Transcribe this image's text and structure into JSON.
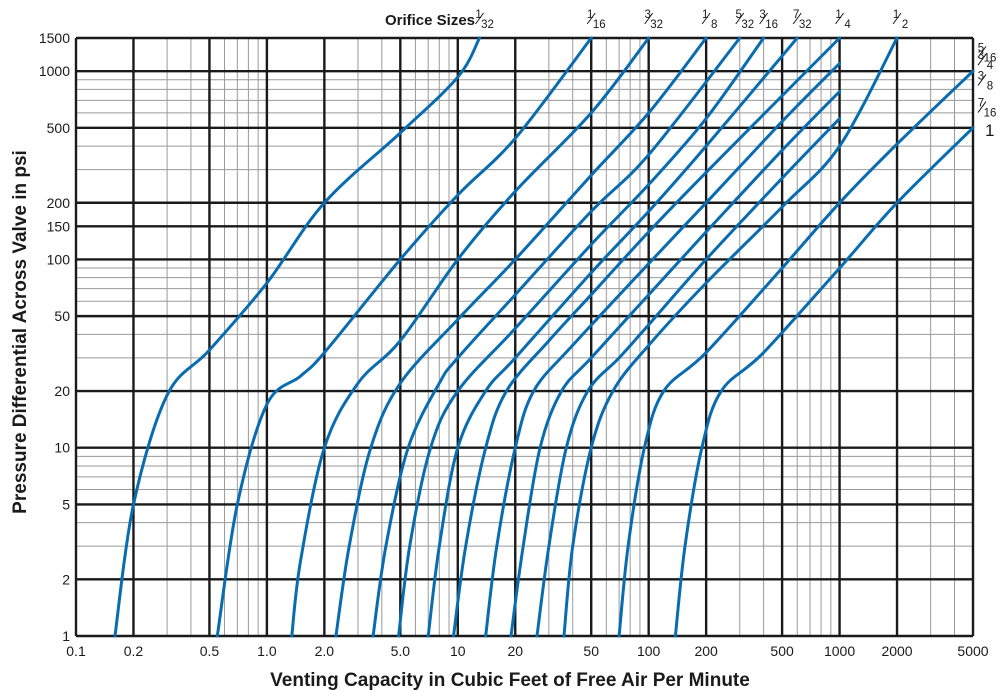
{
  "chart_data": {
    "type": "line",
    "title": "",
    "header": "Orifice Sizes",
    "xlabel": "Venting Capacity in Cubic Feet of Free Air Per Minute",
    "ylabel": "Pressure Differential Across Valve in psi",
    "x_scale": "log",
    "y_scale": "log",
    "xlim": [
      0.1,
      5000
    ],
    "ylim": [
      1,
      1500
    ],
    "grid": true,
    "x_ticks": [
      0.1,
      0.2,
      0.5,
      1.0,
      2.0,
      5.0,
      10,
      20,
      50,
      100,
      200,
      500,
      1000,
      2000,
      5000
    ],
    "x_tick_labels": [
      "0.1",
      "0.2",
      "0.5",
      "1.0",
      "2.0",
      "5.0",
      "10",
      "20",
      "50",
      "100",
      "200",
      "500",
      "1000",
      "2000",
      "5000"
    ],
    "y_ticks": [
      1,
      2,
      5,
      10,
      20,
      50,
      100,
      150,
      200,
      500,
      1000,
      1500
    ],
    "y_tick_labels": [
      "1",
      "2",
      "5",
      "10",
      "20",
      "50",
      "100",
      "150",
      "200",
      "500",
      "1000",
      "1500"
    ],
    "series_color": "#0a6cb0",
    "series": [
      {
        "name": "1/32",
        "x": [
          0.16,
          0.2,
          0.3,
          0.5,
          1.0,
          2.0,
          5.0,
          10,
          13
        ],
        "y": [
          1,
          5,
          19,
          33,
          75,
          200,
          470,
          930,
          1500
        ]
      },
      {
        "name": "1/16",
        "x": [
          0.55,
          0.7,
          1.0,
          1.5,
          2.0,
          5.0,
          10,
          20,
          50
        ],
        "y": [
          1,
          5,
          17,
          24,
          32,
          100,
          220,
          440,
          1500
        ]
      },
      {
        "name": "3/32",
        "x": [
          1.35,
          1.5,
          2.0,
          3.0,
          5.0,
          10,
          20,
          50,
          100
        ],
        "y": [
          1,
          2.5,
          10,
          22,
          37,
          100,
          230,
          600,
          1500
        ]
      },
      {
        "name": "1/8",
        "x": [
          2.3,
          2.7,
          3.5,
          5.0,
          10,
          20,
          50,
          100,
          200
        ],
        "y": [
          1,
          3,
          10,
          22,
          48,
          100,
          280,
          600,
          1500
        ]
      },
      {
        "name": "5/32",
        "x": [
          3.6,
          4.2,
          5.5,
          8.0,
          10,
          20,
          50,
          100,
          300
        ],
        "y": [
          1,
          3,
          10,
          22,
          30,
          65,
          180,
          360,
          1500
        ]
      },
      {
        "name": "3/16",
        "x": [
          4.9,
          5.6,
          7.2,
          10,
          20,
          50,
          100,
          200,
          400
        ],
        "y": [
          1,
          3,
          10,
          20,
          43,
          120,
          250,
          560,
          1500
        ]
      },
      {
        "name": "7/32",
        "x": [
          7.0,
          8.0,
          10,
          14,
          20,
          50,
          100,
          200,
          600
        ],
        "y": [
          1,
          3,
          10,
          20,
          30,
          85,
          180,
          400,
          1500
        ]
      },
      {
        "name": "1/4",
        "x": [
          9.5,
          11,
          14,
          18,
          30,
          50,
          100,
          200,
          1000
        ],
        "y": [
          1,
          3,
          10,
          20,
          37,
          65,
          140,
          290,
          1500
        ]
      },
      {
        "name": "5/16",
        "x": [
          14,
          16,
          20,
          25,
          40,
          100,
          200,
          500,
          1000
        ],
        "y": [
          1,
          3,
          10,
          20,
          35,
          95,
          200,
          540,
          1100
        ]
      },
      {
        "name": "3/8",
        "x": [
          19,
          22,
          27,
          35,
          50,
          100,
          200,
          500,
          1000
        ],
        "y": [
          1,
          3,
          10,
          20,
          30,
          65,
          140,
          380,
          780
        ]
      },
      {
        "name": "7/16",
        "x": [
          26,
          30,
          37,
          48,
          70,
          100,
          200,
          500,
          1000
        ],
        "y": [
          1,
          3,
          10,
          20,
          30,
          45,
          100,
          270,
          560
        ]
      },
      {
        "name": "1/2",
        "x": [
          36,
          40,
          50,
          65,
          100,
          200,
          500,
          1000,
          2000
        ],
        "y": [
          1,
          3,
          10,
          20,
          35,
          75,
          190,
          400,
          1500
        ]
      },
      {
        "name": "3/4",
        "x": [
          70,
          78,
          95,
          120,
          200,
          500,
          1000,
          2000,
          5000
        ],
        "y": [
          1,
          3,
          10,
          20,
          32,
          90,
          200,
          410,
          1000
        ]
      },
      {
        "name": "1",
        "x": [
          138,
          155,
          190,
          240,
          400,
          1000,
          2000,
          5000
        ],
        "y": [
          1,
          3,
          10,
          20,
          32,
          90,
          200,
          500
        ]
      }
    ],
    "series_labels": [
      {
        "num": "1",
        "den": "32"
      },
      {
        "num": "1",
        "den": "16"
      },
      {
        "num": "3",
        "den": "32"
      },
      {
        "num": "1",
        "den": "8"
      },
      {
        "num": "5",
        "den": "32"
      },
      {
        "num": "3",
        "den": "16"
      },
      {
        "num": "7",
        "den": "32"
      },
      {
        "num": "1",
        "den": "4"
      },
      {
        "num": "5",
        "den": "16"
      },
      {
        "num": "3",
        "den": "8"
      },
      {
        "num": "7",
        "den": "16"
      },
      {
        "num": "1",
        "den": "2"
      },
      {
        "num": "3",
        "den": "4"
      },
      {
        "whole": "1"
      }
    ]
  }
}
